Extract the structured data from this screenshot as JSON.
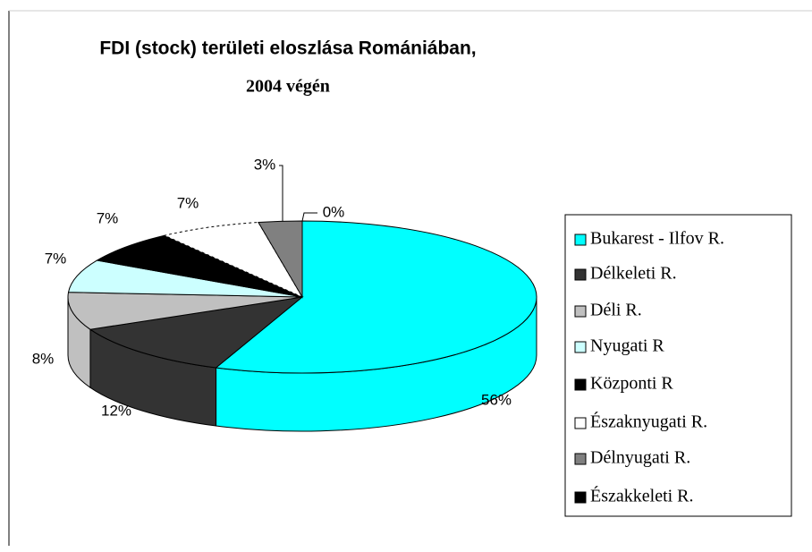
{
  "chart_data": {
    "type": "pie3d",
    "title": "FDI (stock) területi eloszlása Romániában,",
    "subtitle": "2004 végén",
    "categories": [
      "Bukarest - Ilfov R.",
      "Délkeleti R.",
      "Déli R.",
      "Nyugati R",
      "Központi R",
      "Északnyugati R.",
      "Délnyugati R.",
      "Északkeleti R."
    ],
    "values": [
      56,
      12,
      8,
      7,
      7,
      7,
      3,
      0
    ],
    "value_labels": [
      "56%",
      "12%",
      "8%",
      "7%",
      "7%",
      "7%",
      "3%",
      "0%"
    ],
    "colors": [
      "#00ffff",
      "#333333",
      "#c0c0c0",
      "#ccffff",
      "#000000",
      "#ffffff",
      "#808080",
      "#000000"
    ]
  }
}
